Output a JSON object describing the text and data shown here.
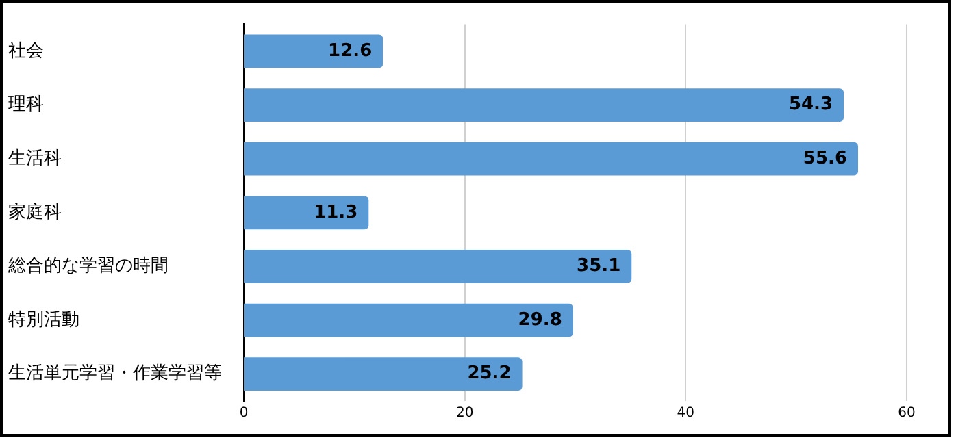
{
  "chart_data": {
    "type": "bar",
    "orientation": "horizontal",
    "categories": [
      "社会",
      "理科",
      "生活科",
      "家庭科",
      "総合的な学習の時間",
      "特別活動",
      "生活単元学習・作業学習等"
    ],
    "values": [
      12.6,
      54.3,
      55.6,
      11.3,
      35.1,
      29.8,
      25.2
    ],
    "color": "#5b9bd5",
    "xlim": [
      0,
      60
    ],
    "xticks": [
      0,
      20,
      40,
      60
    ],
    "grid": "x",
    "data_labels": true,
    "legend": false
  }
}
